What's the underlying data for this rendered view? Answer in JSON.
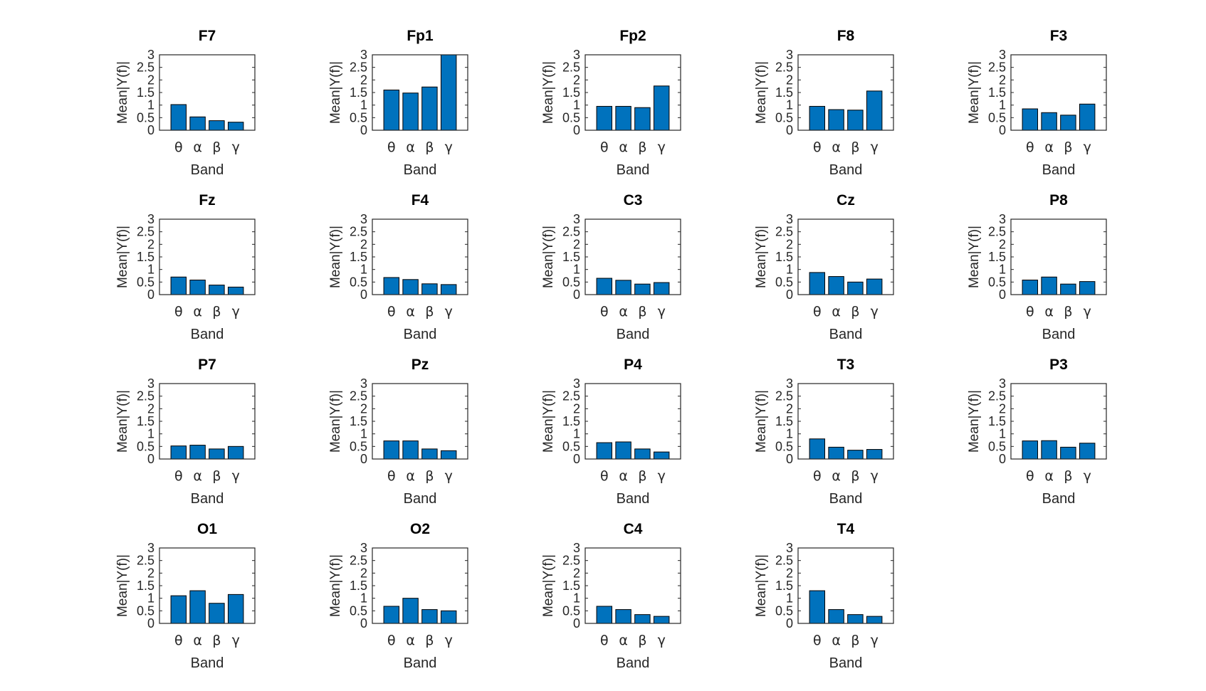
{
  "colors": {
    "bar": "#0072BD",
    "bar_edge": "#000000",
    "axes": "#262626",
    "background": "#ffffff"
  },
  "chart_data": [
    {
      "type": "bar",
      "title": "F7",
      "categories": [
        "θ",
        "α",
        "β",
        "γ"
      ],
      "values": [
        1.02,
        0.53,
        0.38,
        0.32
      ],
      "xlabel": "Band",
      "ylabel": "Mean|Y(f)|",
      "ylim": [
        0,
        3
      ],
      "yticks": [
        "0",
        "0.5",
        "1",
        "1.5",
        "2",
        "2.5",
        "3"
      ]
    },
    {
      "type": "bar",
      "title": "Fp1",
      "categories": [
        "θ",
        "α",
        "β",
        "γ"
      ],
      "values": [
        1.6,
        1.48,
        1.72,
        3.0
      ],
      "xlabel": "Band",
      "ylabel": "Mean|Y(f)|",
      "ylim": [
        0,
        3
      ],
      "yticks": [
        "0",
        "0.5",
        "1",
        "1.5",
        "2",
        "2.5",
        "3"
      ]
    },
    {
      "type": "bar",
      "title": "Fp2",
      "categories": [
        "θ",
        "α",
        "β",
        "γ"
      ],
      "values": [
        0.95,
        0.95,
        0.9,
        1.76
      ],
      "xlabel": "Band",
      "ylabel": "Mean|Y(f)|",
      "ylim": [
        0,
        3
      ],
      "yticks": [
        "0",
        "0.5",
        "1",
        "1.5",
        "2",
        "2.5",
        "3"
      ]
    },
    {
      "type": "bar",
      "title": "F8",
      "categories": [
        "θ",
        "α",
        "β",
        "γ"
      ],
      "values": [
        0.95,
        0.82,
        0.8,
        1.56
      ],
      "xlabel": "Band",
      "ylabel": "Mean|Y(f)|",
      "ylim": [
        0,
        3
      ],
      "yticks": [
        "0",
        "0.5",
        "1",
        "1.5",
        "2",
        "2.5",
        "3"
      ]
    },
    {
      "type": "bar",
      "title": "F3",
      "categories": [
        "θ",
        "α",
        "β",
        "γ"
      ],
      "values": [
        0.85,
        0.7,
        0.6,
        1.04
      ],
      "xlabel": "Band",
      "ylabel": "Mean|Y(f)|",
      "ylim": [
        0,
        3
      ],
      "yticks": [
        "0",
        "0.5",
        "1",
        "1.5",
        "2",
        "2.5",
        "3"
      ]
    },
    {
      "type": "bar",
      "title": "Fz",
      "categories": [
        "θ",
        "α",
        "β",
        "γ"
      ],
      "values": [
        0.7,
        0.58,
        0.38,
        0.3
      ],
      "xlabel": "Band",
      "ylabel": "Mean|Y(f)|",
      "ylim": [
        0,
        3
      ],
      "yticks": [
        "0",
        "0.5",
        "1",
        "1.5",
        "2",
        "2.5",
        "3"
      ]
    },
    {
      "type": "bar",
      "title": "F4",
      "categories": [
        "θ",
        "α",
        "β",
        "γ"
      ],
      "values": [
        0.68,
        0.6,
        0.43,
        0.4
      ],
      "xlabel": "Band",
      "ylabel": "Mean|Y(f)|",
      "ylim": [
        0,
        3
      ],
      "yticks": [
        "0",
        "0.5",
        "1",
        "1.5",
        "2",
        "2.5",
        "3"
      ]
    },
    {
      "type": "bar",
      "title": "C3",
      "categories": [
        "θ",
        "α",
        "β",
        "γ"
      ],
      "values": [
        0.65,
        0.57,
        0.42,
        0.48
      ],
      "xlabel": "Band",
      "ylabel": "Mean|Y(f)|",
      "ylim": [
        0,
        3
      ],
      "yticks": [
        "0",
        "0.5",
        "1",
        "1.5",
        "2",
        "2.5",
        "3"
      ]
    },
    {
      "type": "bar",
      "title": "Cz",
      "categories": [
        "θ",
        "α",
        "β",
        "γ"
      ],
      "values": [
        0.88,
        0.72,
        0.5,
        0.62
      ],
      "xlabel": "Band",
      "ylabel": "Mean|Y(f)|",
      "ylim": [
        0,
        3
      ],
      "yticks": [
        "0",
        "0.5",
        "1",
        "1.5",
        "2",
        "2.5",
        "3"
      ]
    },
    {
      "type": "bar",
      "title": "P8",
      "categories": [
        "θ",
        "α",
        "β",
        "γ"
      ],
      "values": [
        0.58,
        0.7,
        0.42,
        0.52
      ],
      "xlabel": "Band",
      "ylabel": "Mean|Y(f)|",
      "ylim": [
        0,
        3
      ],
      "yticks": [
        "0",
        "0.5",
        "1",
        "1.5",
        "2",
        "2.5",
        "3"
      ]
    },
    {
      "type": "bar",
      "title": "P7",
      "categories": [
        "θ",
        "α",
        "β",
        "γ"
      ],
      "values": [
        0.52,
        0.55,
        0.4,
        0.5
      ],
      "xlabel": "Band",
      "ylabel": "Mean|Y(f)|",
      "ylim": [
        0,
        3
      ],
      "yticks": [
        "0",
        "0.5",
        "1",
        "1.5",
        "2",
        "2.5",
        "3"
      ]
    },
    {
      "type": "bar",
      "title": "Pz",
      "categories": [
        "θ",
        "α",
        "β",
        "γ"
      ],
      "values": [
        0.72,
        0.72,
        0.4,
        0.33
      ],
      "xlabel": "Band",
      "ylabel": "Mean|Y(f)|",
      "ylim": [
        0,
        3
      ],
      "yticks": [
        "0",
        "0.5",
        "1",
        "1.5",
        "2",
        "2.5",
        "3"
      ]
    },
    {
      "type": "bar",
      "title": "P4",
      "categories": [
        "θ",
        "α",
        "β",
        "γ"
      ],
      "values": [
        0.65,
        0.68,
        0.4,
        0.28
      ],
      "xlabel": "Band",
      "ylabel": "Mean|Y(f)|",
      "ylim": [
        0,
        3
      ],
      "yticks": [
        "0",
        "0.5",
        "1",
        "1.5",
        "2",
        "2.5",
        "3"
      ]
    },
    {
      "type": "bar",
      "title": "T3",
      "categories": [
        "θ",
        "α",
        "β",
        "γ"
      ],
      "values": [
        0.8,
        0.47,
        0.35,
        0.38
      ],
      "xlabel": "Band",
      "ylabel": "Mean|Y(f)|",
      "ylim": [
        0,
        3
      ],
      "yticks": [
        "0",
        "0.5",
        "1",
        "1.5",
        "2",
        "2.5",
        "3"
      ]
    },
    {
      "type": "bar",
      "title": "P3",
      "categories": [
        "θ",
        "α",
        "β",
        "γ"
      ],
      "values": [
        0.72,
        0.73,
        0.47,
        0.63
      ],
      "xlabel": "Band",
      "ylabel": "Mean|Y(f)|",
      "ylim": [
        0,
        3
      ],
      "yticks": [
        "0",
        "0.5",
        "1",
        "1.5",
        "2",
        "2.5",
        "3"
      ]
    },
    {
      "type": "bar",
      "title": "O1",
      "categories": [
        "θ",
        "α",
        "β",
        "γ"
      ],
      "values": [
        1.1,
        1.3,
        0.8,
        1.15
      ],
      "xlabel": "Band",
      "ylabel": "Mean|Y(f)|",
      "ylim": [
        0,
        3
      ],
      "yticks": [
        "0",
        "0.5",
        "1",
        "1.5",
        "2",
        "2.5",
        "3"
      ]
    },
    {
      "type": "bar",
      "title": "O2",
      "categories": [
        "θ",
        "α",
        "β",
        "γ"
      ],
      "values": [
        0.68,
        1.0,
        0.55,
        0.5
      ],
      "xlabel": "Band",
      "ylabel": "Mean|Y(f)|",
      "ylim": [
        0,
        3
      ],
      "yticks": [
        "0",
        "0.5",
        "1",
        "1.5",
        "2",
        "2.5",
        "3"
      ]
    },
    {
      "type": "bar",
      "title": "C4",
      "categories": [
        "θ",
        "α",
        "β",
        "γ"
      ],
      "values": [
        0.68,
        0.55,
        0.35,
        0.28
      ],
      "xlabel": "Band",
      "ylabel": "Mean|Y(f)|",
      "ylim": [
        0,
        3
      ],
      "yticks": [
        "0",
        "0.5",
        "1",
        "1.5",
        "2",
        "2.5",
        "3"
      ]
    },
    {
      "type": "bar",
      "title": "T4",
      "categories": [
        "θ",
        "α",
        "β",
        "γ"
      ],
      "values": [
        1.3,
        0.55,
        0.35,
        0.28
      ],
      "xlabel": "Band",
      "ylabel": "Mean|Y(f)|",
      "ylim": [
        0,
        3
      ],
      "yticks": [
        "0",
        "0.5",
        "1",
        "1.5",
        "2",
        "2.5",
        "3"
      ]
    }
  ]
}
